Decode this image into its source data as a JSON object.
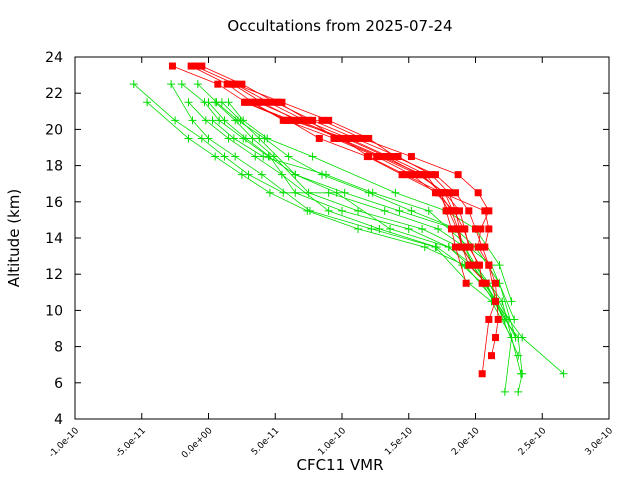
{
  "chart_data": {
    "type": "line",
    "title": "Occultations from 2025-07-24",
    "xlabel": "CFC11 VMR",
    "ylabel": "Altitude (km)",
    "xlim": [
      -1e-10,
      3e-10
    ],
    "ylim": [
      4,
      24
    ],
    "xticks": [
      -1e-10,
      -5e-11,
      0.0,
      5e-11,
      1e-10,
      1.5e-10,
      2e-10,
      2.5e-10,
      3e-10
    ],
    "xtick_labels": [
      "-1.0e-10",
      "-5.0e-11",
      "0.0e+00",
      "5.0e-11",
      "1.0e-10",
      "1.5e-10",
      "2.0e-10",
      "2.5e-10",
      "3.0e-10"
    ],
    "yticks": [
      4,
      6,
      8,
      10,
      12,
      14,
      16,
      18,
      20,
      22,
      24
    ],
    "ytick_labels": [
      "4",
      "6",
      "8",
      "10",
      "12",
      "14",
      "16",
      "18",
      "20",
      "22",
      "24"
    ],
    "grid": false,
    "legend": "none",
    "colors": {
      "red": "#ff0000",
      "green": "#00dd00"
    },
    "red_series": [
      {
        "x": [
          -1.3e-11,
          1.4e-11,
          3.3e-11,
          5.6e-11,
          8.5e-11,
          1.15e-10,
          1.52e-10,
          1.87e-10,
          2.02e-10,
          2.1e-10,
          2.04e-10,
          2.02e-10,
          2.1e-10,
          2.15e-10,
          2.1e-10,
          2.05e-10
        ],
        "y": [
          23.5,
          22.5,
          21.5,
          20.5,
          20.5,
          19.5,
          18.5,
          17.5,
          16.5,
          15.5,
          14.5,
          13.5,
          12.5,
          10.5,
          9.5,
          6.5
        ]
      },
      {
        "x": [
          -1e-11,
          2e-11,
          5.5e-11,
          9e-11,
          1.2e-10,
          1.4e-10,
          1.7e-10,
          1.85e-10,
          1.95e-10,
          2e-10,
          2.05e-10,
          2.1e-10,
          2.15e-10,
          2.17e-10,
          2.15e-10,
          2.12e-10
        ],
        "y": [
          23.5,
          22.5,
          21.5,
          20.5,
          19.5,
          18.5,
          17.5,
          16.5,
          15.5,
          14.5,
          13.5,
          12.5,
          11.5,
          9.5,
          8.5,
          7.5
        ]
      },
      {
        "x": [
          -2.7e-11,
          7e-12,
          2.8e-11,
          6.2e-11,
          1.03e-10,
          1.33e-10,
          1.58e-10,
          1.77e-10,
          1.88e-10,
          1.92e-10,
          1.95e-10,
          2.03e-10,
          2.05e-10
        ],
        "y": [
          23.5,
          22.5,
          21.5,
          20.5,
          19.5,
          18.5,
          17.5,
          16.5,
          15.5,
          14.5,
          13.5,
          12.5,
          11.5
        ]
      },
      {
        "x": [
          2e-11,
          4.5e-11,
          7.2e-11,
          1.05e-10,
          1.35e-10,
          1.63e-10,
          1.73e-10,
          1.82e-10,
          1.87e-10,
          1.9e-10,
          1.95e-10,
          2.08e-10
        ],
        "y": [
          22.5,
          21.5,
          20.5,
          19.5,
          18.5,
          17.5,
          16.5,
          15.5,
          14.5,
          13.5,
          12.5,
          11.5
        ]
      },
      {
        "x": [
          -5e-12,
          2.5e-11,
          5e-11,
          7.8e-11,
          1.1e-10,
          1.42e-10,
          1.67e-10,
          1.8e-10,
          1.85e-10,
          1.88e-10,
          1.9e-10,
          1.98e-10
        ],
        "y": [
          23.5,
          22.5,
          21.5,
          20.5,
          19.5,
          18.5,
          17.5,
          16.5,
          15.5,
          14.5,
          13.5,
          12.5
        ]
      },
      {
        "x": [
          1.8e-11,
          4e-11,
          6.6e-11,
          9.8e-11,
          1.3e-10,
          1.6e-10,
          1.74e-10,
          1.78e-10,
          1.82e-10,
          1.85e-10,
          1.93e-10
        ],
        "y": [
          22.5,
          21.5,
          20.5,
          19.5,
          18.5,
          17.5,
          16.5,
          15.5,
          14.5,
          13.5,
          11.5
        ]
      },
      {
        "x": [
          3.2e-11,
          5.8e-11,
          9.4e-11,
          1.26e-10,
          1.52e-10,
          1.7e-10,
          1.84e-10,
          1.91e-10,
          1.96e-10,
          2.02e-10
        ],
        "y": [
          21.5,
          20.5,
          19.5,
          18.5,
          17.5,
          16.5,
          15.5,
          14.5,
          13.5,
          12.5
        ]
      },
      {
        "x": [
          2.7e-11,
          6e-11,
          8.3e-11,
          1.19e-10,
          1.45e-10,
          1.72e-10,
          1.8e-10,
          1.86e-10,
          1.9e-10
        ],
        "y": [
          21.5,
          20.5,
          19.5,
          18.5,
          17.5,
          16.5,
          15.5,
          14.5,
          13.5
        ]
      },
      {
        "x": [
          3.7e-11,
          6.8e-11,
          1e-10,
          1.2e-10,
          1.47e-10,
          1.75e-10,
          2.07e-10,
          2.1e-10,
          2.07e-10
        ],
        "y": [
          21.5,
          20.5,
          19.5,
          18.5,
          17.5,
          16.5,
          15.5,
          14.5,
          13.5
        ]
      },
      {
        "x": [
          5.2e-11,
          7.5e-11,
          9.6e-11,
          1.28e-10,
          1.57e-10,
          1.77e-10,
          1.83e-10
        ],
        "y": [
          21.5,
          20.5,
          19.5,
          18.5,
          17.5,
          16.5,
          15.5
        ]
      }
    ],
    "green_series": [
      {
        "x": [
          -5.6e-11,
          -2.5e-11,
          -5e-12,
          1.2e-11,
          3e-11,
          5.6e-11,
          9e-11,
          1.32e-10,
          1.72e-10,
          1.92e-10,
          2.08e-10,
          2.22e-10,
          2.32e-10,
          2.35e-10,
          2.32e-10
        ],
        "y": [
          22.5,
          20.5,
          19.5,
          18.5,
          17.5,
          16.5,
          16.5,
          15.5,
          14.5,
          13.5,
          11.5,
          9.5,
          8.5,
          6.5,
          5.5
        ]
      },
      {
        "x": [
          -4.6e-11,
          -1.5e-11,
          5e-12,
          2.5e-11,
          4.6e-11,
          7.4e-11,
          1.12e-10,
          1.62e-10,
          1.92e-10,
          2.15e-10,
          2.35e-10,
          2.66e-10
        ],
        "y": [
          21.5,
          19.5,
          18.5,
          17.5,
          16.5,
          15.5,
          14.5,
          13.5,
          12.5,
          10.5,
          8.5,
          6.5
        ]
      },
      {
        "x": [
          -2.8e-11,
          -1.2e-11,
          0.0,
          2e-11,
          4e-11,
          7.6e-11,
          1.22e-10,
          1.7e-10,
          1.95e-10,
          2.12e-10,
          2.27e-10,
          2.22e-10
        ],
        "y": [
          22.5,
          20.5,
          19.5,
          18.5,
          17.5,
          15.5,
          14.5,
          13.5,
          11.5,
          10.5,
          8.5,
          5.5
        ]
      },
      {
        "x": [
          -2e-11,
          -3e-12,
          8e-12,
          2.6e-11,
          4.5e-11,
          6.5e-11,
          9.6e-11,
          1.36e-10,
          1.8e-10,
          1.98e-10,
          2.16e-10,
          2.3e-10
        ],
        "y": [
          22.5,
          21.5,
          20.5,
          19.5,
          18.5,
          17.5,
          16.5,
          14.5,
          13.5,
          12.5,
          10.5,
          8.5
        ]
      },
      {
        "x": [
          -1.5e-11,
          -2e-12,
          1.5e-11,
          3.5e-11,
          5.5e-11,
          9e-11,
          1.28e-10,
          1.71e-10,
          1.9e-10,
          2.05e-10,
          2.22e-10
        ],
        "y": [
          21.5,
          20.5,
          19.5,
          18.5,
          17.5,
          15.5,
          14.5,
          13.5,
          12.5,
          11.5,
          9.5
        ]
      },
      {
        "x": [
          -8e-12,
          6e-12,
          2.2e-11,
          4.2e-11,
          6e-11,
          8.5e-11,
          1.2e-10,
          1.52e-10,
          1.86e-10,
          1.98e-10,
          2.15e-10,
          2.32e-10
        ],
        "y": [
          22.5,
          21.5,
          20.5,
          19.5,
          18.5,
          17.5,
          16.5,
          15.5,
          14.5,
          12.5,
          10.5,
          7.5
        ]
      },
      {
        "x": [
          0.0,
          1.2e-11,
          2.8e-11,
          4.6e-11,
          6.5e-11,
          1e-10,
          1.5e-10,
          1.8e-10,
          1.95e-10,
          2.1e-10,
          2.25e-10
        ],
        "y": [
          21.5,
          20.5,
          19.5,
          18.5,
          16.5,
          15.5,
          14.5,
          13.5,
          12.5,
          11.5,
          9.5
        ]
      },
      {
        "x": [
          5e-12,
          2e-11,
          3.3e-11,
          4.9e-11,
          7.5e-11,
          1.12e-10,
          1.6e-10,
          1.88e-10,
          2e-10,
          2.2e-10,
          2.34e-10
        ],
        "y": [
          21.5,
          20.5,
          19.5,
          18.5,
          16.5,
          15.5,
          14.5,
          13.5,
          12.5,
          10.5,
          6.5
        ]
      },
      {
        "x": [
          1e-11,
          2.4e-11,
          3.8e-11,
          6.5e-11,
          1.02e-10,
          1.43e-10,
          1.85e-10,
          2e-10,
          2.18e-10,
          2.3e-10
        ],
        "y": [
          21.5,
          20.5,
          19.5,
          17.5,
          16.5,
          15.5,
          14.5,
          13.5,
          11.5,
          8.5
        ]
      },
      {
        "x": [
          1.5e-11,
          2.6e-11,
          4.4e-11,
          7.8e-11,
          1.4e-10,
          1.78e-10,
          2e-10,
          2.18e-10,
          2.27e-10
        ],
        "y": [
          21.5,
          20.5,
          19.5,
          18.5,
          16.5,
          15.5,
          14.5,
          12.5,
          10.5
        ]
      },
      {
        "x": [
          3e-12,
          1.9e-11,
          4.1e-11,
          8.8e-11,
          1.23e-10,
          1.65e-10,
          1.95e-10,
          2.12e-10,
          2.29e-10
        ],
        "y": [
          20.5,
          19.5,
          18.5,
          17.5,
          16.5,
          15.5,
          13.5,
          12.5,
          9.5
        ]
      }
    ]
  }
}
